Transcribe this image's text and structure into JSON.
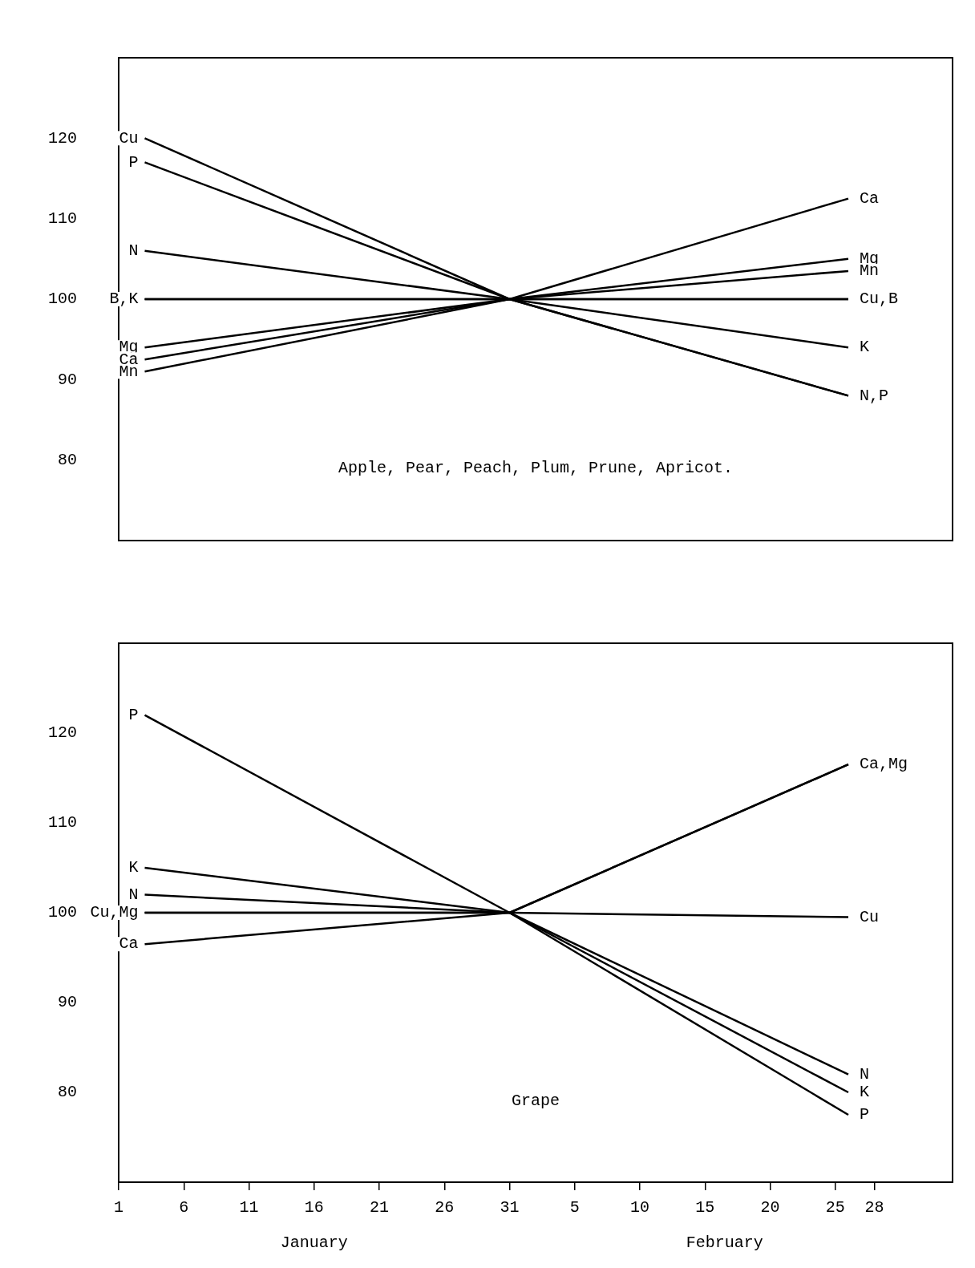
{
  "chart_data": [
    {
      "type": "line",
      "x": [
        "--01-03",
        "--01-31",
        "--02-26"
      ],
      "xlim": [
        "--01-01",
        "--03-06"
      ],
      "ylim": [
        70,
        130
      ],
      "yticks": [
        80,
        90,
        100,
        110,
        120
      ],
      "tick_labels": "y",
      "grid": false,
      "legend": false,
      "marker": "none",
      "series": [
        {
          "color": "#000000",
          "values": [
            120,
            100,
            100
          ]
        },
        {
          "color": "#000000",
          "values": [
            117,
            100,
            88
          ]
        },
        {
          "color": "#000000",
          "values": [
            106,
            100,
            88
          ]
        },
        {
          "color": "#000000",
          "values": [
            100,
            100,
            100
          ]
        },
        {
          "color": "#000000",
          "values": [
            100,
            100,
            94
          ]
        },
        {
          "color": "#000000",
          "values": [
            94,
            100,
            105
          ]
        },
        {
          "color": "#000000",
          "values": [
            92.5,
            100,
            112.5
          ]
        },
        {
          "color": "#000000",
          "values": [
            91,
            100,
            103.5
          ]
        }
      ],
      "annotations": [
        {
          "text": "Cu",
          "x": "--01-03",
          "y": 120
        },
        {
          "text": "P",
          "x": "--01-03",
          "y": 117
        },
        {
          "text": "N",
          "x": "--01-03",
          "y": 106
        },
        {
          "text": "B,K",
          "x": "--01-03",
          "y": 100
        },
        {
          "text": "Mg",
          "x": "--01-03",
          "y": 94
        },
        {
          "text": "Ca",
          "x": "--01-03",
          "y": 92.5
        },
        {
          "text": "Mn",
          "x": "--01-03",
          "y": 91
        },
        {
          "text": "Ca",
          "x": "--02-26",
          "y": 112.5
        },
        {
          "text": "Mg",
          "x": "--02-26",
          "y": 105
        },
        {
          "text": "Mn",
          "x": "--02-26",
          "y": 103.5
        },
        {
          "text": "Cu,B",
          "x": "--02-26",
          "y": 100
        },
        {
          "text": "K",
          "x": "--02-26",
          "y": 94
        },
        {
          "text": "N,P",
          "x": "--02-26",
          "y": 88
        },
        "Apple, Pear, Peach, Plum, Prune, Apricot."
      ]
    },
    {
      "type": "line",
      "x": [
        "--01-03",
        "--01-31",
        "--02-26"
      ],
      "xlim": [
        "--01-01",
        "--03-06"
      ],
      "ylim": [
        70,
        130
      ],
      "yticks": [
        80,
        90,
        100,
        110,
        120
      ],
      "grid": false,
      "legend": false,
      "marker": "none",
      "xticks": [
        {
          "value": "--01-01",
          "label": "1"
        },
        {
          "value": "--01-06",
          "label": "6"
        },
        {
          "value": "--01-11",
          "label": "11"
        },
        {
          "value": "--01-16",
          "label": "16"
        },
        {
          "value": "--01-21",
          "label": "21"
        },
        {
          "value": "--01-26",
          "label": "26"
        },
        {
          "value": "--01-31",
          "label": "31"
        },
        {
          "value": "--02-05",
          "label": "5"
        },
        {
          "value": "--02-10",
          "label": "10"
        },
        {
          "value": "--02-15",
          "label": "15"
        },
        {
          "value": "--02-20",
          "label": "20"
        },
        {
          "value": "--02-25",
          "label": "25"
        },
        {
          "value": "--02-28",
          "label": "28"
        }
      ],
      "series": [
        {
          "color": "#000000",
          "values": [
            122,
            100,
            77.5
          ]
        },
        {
          "color": "#000000",
          "values": [
            105,
            100,
            80
          ]
        },
        {
          "color": "#000000",
          "values": [
            102,
            100,
            82
          ]
        },
        {
          "color": "#000000",
          "values": [
            100,
            100,
            99.5
          ]
        },
        {
          "color": "#000000",
          "values": [
            100,
            100,
            116.5
          ]
        },
        {
          "color": "#000000",
          "values": [
            96.5,
            100,
            116.5
          ]
        }
      ],
      "annotations": [
        {
          "text": "P",
          "x": "--01-03",
          "y": 122
        },
        {
          "text": "K",
          "x": "--01-03",
          "y": 105
        },
        {
          "text": "N",
          "x": "--01-03",
          "y": 102
        },
        {
          "text": "Cu,Mg",
          "x": "--01-03",
          "y": 100
        },
        {
          "text": "Ca",
          "x": "--01-03",
          "y": 96.5
        },
        {
          "text": "Ca,Mg",
          "x": "--02-26",
          "y": 116.5
        },
        {
          "text": "Cu",
          "x": "--02-26",
          "y": 99.5
        },
        {
          "text": "N",
          "x": "--02-26",
          "y": 82
        },
        {
          "text": "K",
          "x": "--02-26",
          "y": 80
        },
        {
          "text": "P",
          "x": "--02-26",
          "y": 77.5
        },
        "Grape",
        "January",
        "February"
      ]
    }
  ]
}
